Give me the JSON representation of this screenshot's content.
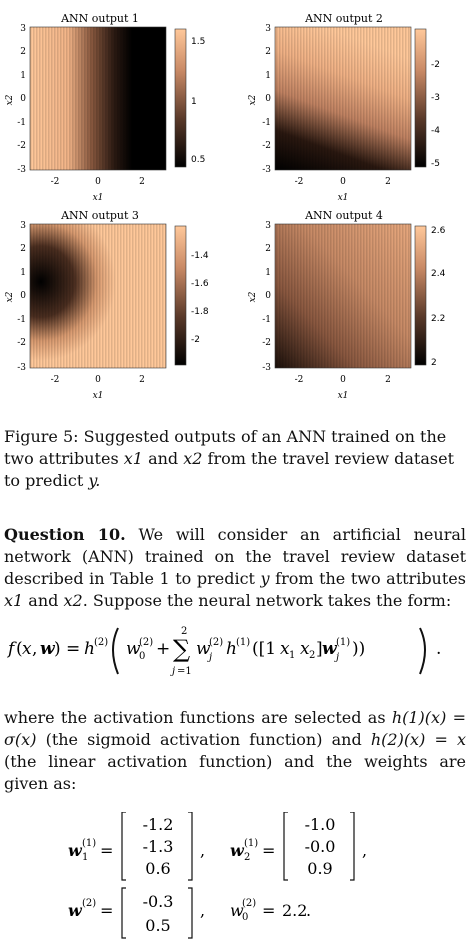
{
  "figure": {
    "panels": [
      {
        "title": "ANN output 1",
        "cb_ticks": [
          "1.5",
          "1",
          "0.5"
        ]
      },
      {
        "title": "ANN output 2",
        "cb_ticks": [
          "-2",
          "-3",
          "-4",
          "-5"
        ]
      },
      {
        "title": "ANN output 3",
        "cb_ticks": [
          "-1.4",
          "-1.6",
          "-1.8",
          "-2"
        ]
      },
      {
        "title": "ANN output 4",
        "cb_ticks": [
          "2.6",
          "2.4",
          "2.2",
          "2"
        ]
      }
    ],
    "y_ticks": [
      "3",
      "2",
      "1",
      "0",
      "-1",
      "-2",
      "-3"
    ],
    "x_ticks": [
      "-2",
      "0",
      "2"
    ],
    "xlabel": "x1",
    "ylabel": "x2"
  },
  "caption": {
    "label": "Figure 5:",
    "text_a": "Suggested outputs of an ANN trained on the two attributes",
    "text_b": "and",
    "text_c": "from the travel review dataset to predict",
    "x1": "x1",
    "x2": "x2",
    "y": "y."
  },
  "question": {
    "label": "Question 10.",
    "text_a": "We will consider an artificial neural network (ANN) trained on the travel review dataset described in Table 1 to predict",
    "text_b": "from the two attributes",
    "text_c": "and",
    "text_d": ". Suppose the neural network takes the form:",
    "y": "y",
    "x1": "x1",
    "x2": "x2"
  },
  "activation_text": {
    "a": "where the activation functions are selected as",
    "b": "(the sigmoid activation function) and",
    "c": "(the linear activation function) and the weights are given as:",
    "h1": "h(1)(x) = σ(x)",
    "h2": "h(2)(x) = x"
  },
  "weights": {
    "w1": [
      "-1.2",
      "-1.3",
      "0.6"
    ],
    "w2": [
      "-1.0",
      "-0.0",
      "0.9"
    ],
    "w_out": [
      "-0.3",
      "0.5"
    ],
    "w0": "2.2"
  }
}
